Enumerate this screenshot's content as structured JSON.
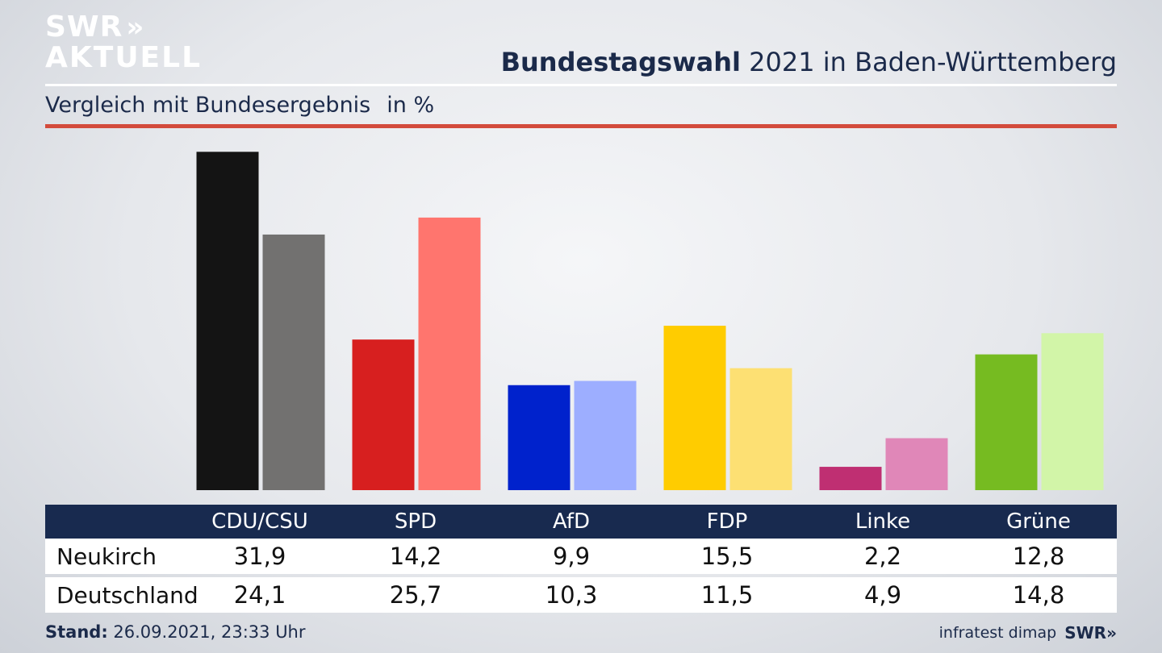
{
  "branding": {
    "logo_line1": "SWR",
    "logo_chevrons": "»",
    "logo_line2": "AKTUELL",
    "footer_logo": "SWR»"
  },
  "header": {
    "title_bold": "Bundestagswahl",
    "title_rest": "2021 in Baden-Württemberg"
  },
  "subtitle": {
    "text": "Vergleich mit Bundesergebnis",
    "unit": "in %"
  },
  "colors": {
    "red_rule": "#d34b3c",
    "table_header": "#182a4f"
  },
  "chart_data": {
    "type": "bar",
    "categories": [
      "CDU/CSU",
      "SPD",
      "AfD",
      "FDP",
      "Linke",
      "Grüne"
    ],
    "series": [
      {
        "name": "Neukirch",
        "values": [
          31.9,
          14.2,
          9.9,
          15.5,
          2.2,
          12.8
        ],
        "colors": [
          "#141414",
          "#d71f1f",
          "#0022cc",
          "#ffcc00",
          "#bf2f72",
          "#76bb21"
        ]
      },
      {
        "name": "Deutschland",
        "values": [
          24.1,
          25.7,
          10.3,
          11.5,
          4.9,
          14.8
        ],
        "colors": [
          "#727170",
          "#ff756e",
          "#9daeff",
          "#fde073",
          "#e087b8",
          "#d2f5a8"
        ]
      }
    ],
    "ylim": [
      0,
      32
    ],
    "grid": false,
    "value_labels": {
      "Neukirch": [
        "31,9",
        "14,2",
        "9,9",
        "15,5",
        "2,2",
        "12,8"
      ],
      "Deutschland": [
        "24,1",
        "25,7",
        "10,3",
        "11,5",
        "4,9",
        "14,8"
      ]
    }
  },
  "footer": {
    "stand_label": "Stand:",
    "stand_value": "26.09.2021, 23:33 Uhr",
    "source": "infratest dimap"
  }
}
